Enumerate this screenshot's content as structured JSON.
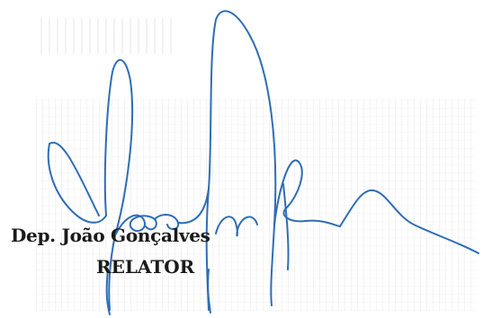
{
  "signature_block": {
    "name": "Dep. João Gonçalves",
    "role": "RELATOR"
  },
  "colors": {
    "ink": "#2f6db5",
    "text": "#1a1a1a"
  }
}
